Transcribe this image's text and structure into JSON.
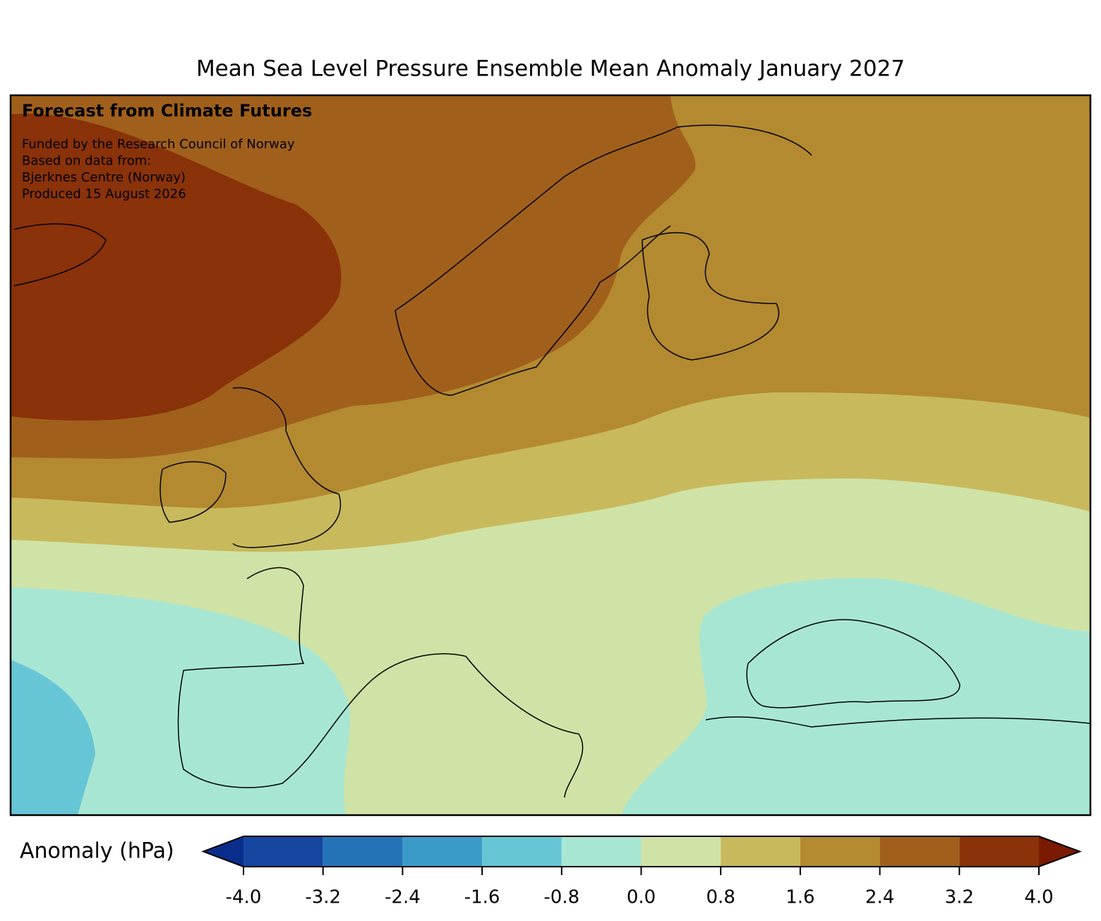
{
  "title": "Mean Sea Level Pressure Ensemble Mean Anomaly January 2027",
  "heading": "Forecast from Climate Futures",
  "notes": [
    "Funded by the Research Council of Norway",
    "Based on data from:",
    "Bjerknes Centre (Norway)",
    "Produced 15 August 2026"
  ],
  "colorbar": {
    "label": "Anomaly (hPa)",
    "ticks": [
      {
        "value": -4,
        "label": "-4.0"
      },
      -3.2,
      -2.4,
      -1.6,
      -0.8,
      {
        "value": 0,
        "label": "0.0"
      },
      0.8,
      1.6,
      2.4,
      3.2,
      {
        "value": 4,
        "label": "4.0"
      }
    ],
    "colors": [
      "#1446a0",
      "#2473b6",
      "#3a9bc9",
      "#66c6d6",
      "#a8e6d4",
      "#cfe3a6",
      "#c8b95c",
      "#b38a30",
      "#a0601c",
      "#8a3209"
    ],
    "extend_colors": [
      "#0a2d8c",
      "#7a1a00"
    ]
  }
}
